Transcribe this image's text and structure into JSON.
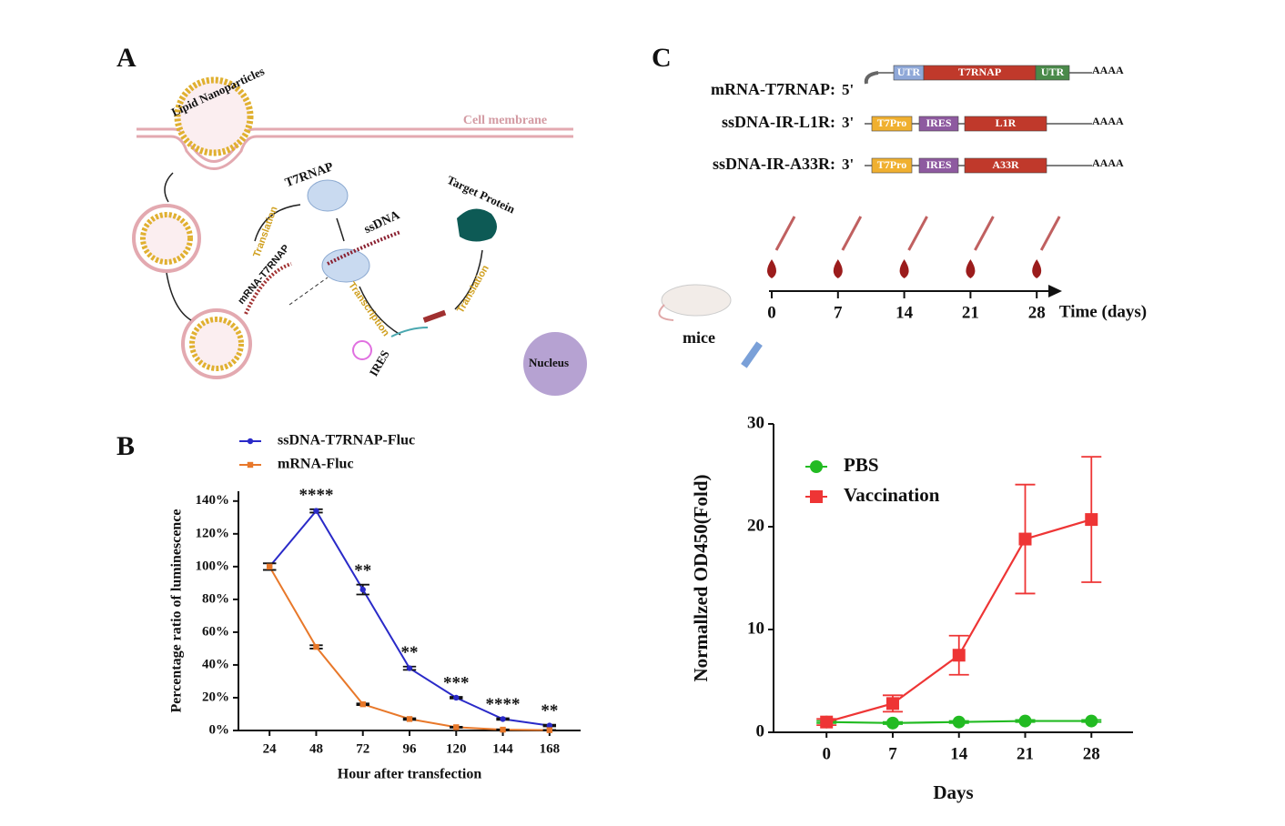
{
  "panel_labels": [
    "A",
    "B",
    "C"
  ],
  "diagram": {
    "lnp": "Lipid Nanoparticles",
    "membrane": "Cell membrane",
    "t7rnap": "T7RNAP",
    "ssdna": "ssDNA",
    "target": "Target Protein",
    "translation_1": "Translation",
    "mrna": "mRNA-T7RNAP",
    "transcription": "Transcription",
    "ires": "IRES",
    "translation_2": "Translation",
    "nucleus": "Nucleus"
  },
  "constructs": [
    {
      "name": "mRNA-T7RNAP:",
      "end": "5'",
      "parts": [
        "UTR",
        "T7RNAP",
        "UTR"
      ],
      "tail": "AAAA"
    },
    {
      "name": "ssDNA-IR-L1R:",
      "end": "3'",
      "parts": [
        "T7Pro",
        "IRES",
        "L1R"
      ],
      "tail": "AAAA"
    },
    {
      "name": "ssDNA-IR-A33R:",
      "end": "3'",
      "parts": [
        "T7Pro",
        "IRES",
        "A33R"
      ],
      "tail": "AAAA"
    }
  ],
  "timeline": {
    "days": [
      0,
      7,
      14,
      21,
      28
    ],
    "axis_label": "Time (days)",
    "animal": "mice"
  },
  "chart_data": [
    {
      "type": "line",
      "xlabel": "Hour after transfection",
      "ylabel": "Percentage ratio of luminescence",
      "x": [
        24,
        48,
        72,
        96,
        120,
        144,
        168
      ],
      "xlim": [
        8,
        184
      ],
      "xticks": [
        24,
        48,
        72,
        96,
        120,
        144,
        168
      ],
      "ylim": [
        0,
        146
      ],
      "yticks": [
        {
          "value": 0,
          "label": "0%"
        },
        {
          "value": 20,
          "label": "20%"
        },
        {
          "value": 40,
          "label": "40%"
        },
        {
          "value": 60,
          "label": "60%"
        },
        {
          "value": 80,
          "label": "80%"
        },
        {
          "value": 100,
          "label": "100%"
        },
        {
          "value": 120,
          "label": "120%"
        },
        {
          "value": 140,
          "label": "140%"
        }
      ],
      "legend": "top",
      "series": [
        {
          "name": "ssDNA-T7RNAP-Fluc",
          "color": "#2a2ac8",
          "marker": "circle",
          "values": [
            100,
            134,
            86,
            38,
            20,
            7,
            3
          ],
          "errors": [
            2,
            1,
            3,
            1,
            0.5,
            0.5,
            0.5
          ]
        },
        {
          "name": "mRNA-Fluc",
          "color": "#e8782a",
          "marker": "square",
          "values": [
            100,
            51,
            16,
            7,
            2,
            0.5,
            0.2
          ],
          "errors": [
            2,
            1,
            0.5,
            0.5,
            0.3,
            0.2,
            0.1
          ]
        }
      ],
      "annotations": [
        {
          "x": 48,
          "text": "****"
        },
        {
          "x": 72,
          "text": "**"
        },
        {
          "x": 96,
          "text": "**"
        },
        {
          "x": 120,
          "text": "***"
        },
        {
          "x": 144,
          "text": "****"
        },
        {
          "x": 168,
          "text": "**"
        }
      ]
    },
    {
      "type": "line",
      "xlabel": "Days",
      "ylabel": "Normallzed OD450(Fold)",
      "x": [
        0,
        7,
        14,
        21,
        28
      ],
      "xlim": [
        -5.6,
        32.4
      ],
      "xticks": [
        0,
        7,
        14,
        21,
        28
      ],
      "ylim": [
        0,
        30
      ],
      "yticks": [
        0,
        10,
        20,
        30
      ],
      "legend": "upper left",
      "series": [
        {
          "name": "PBS",
          "color": "#22bb22",
          "marker": "circle",
          "values": [
            1,
            0.9,
            1,
            1.1,
            1.1
          ],
          "errors": [
            0.1,
            0.1,
            0.1,
            0.1,
            0.1
          ]
        },
        {
          "name": "Vaccination",
          "color": "#ee3535",
          "marker": "square",
          "values": [
            1,
            2.8,
            7.5,
            18.8,
            20.7
          ],
          "errors": [
            0.3,
            0.8,
            1.9,
            5.3,
            6.1
          ]
        }
      ]
    }
  ]
}
